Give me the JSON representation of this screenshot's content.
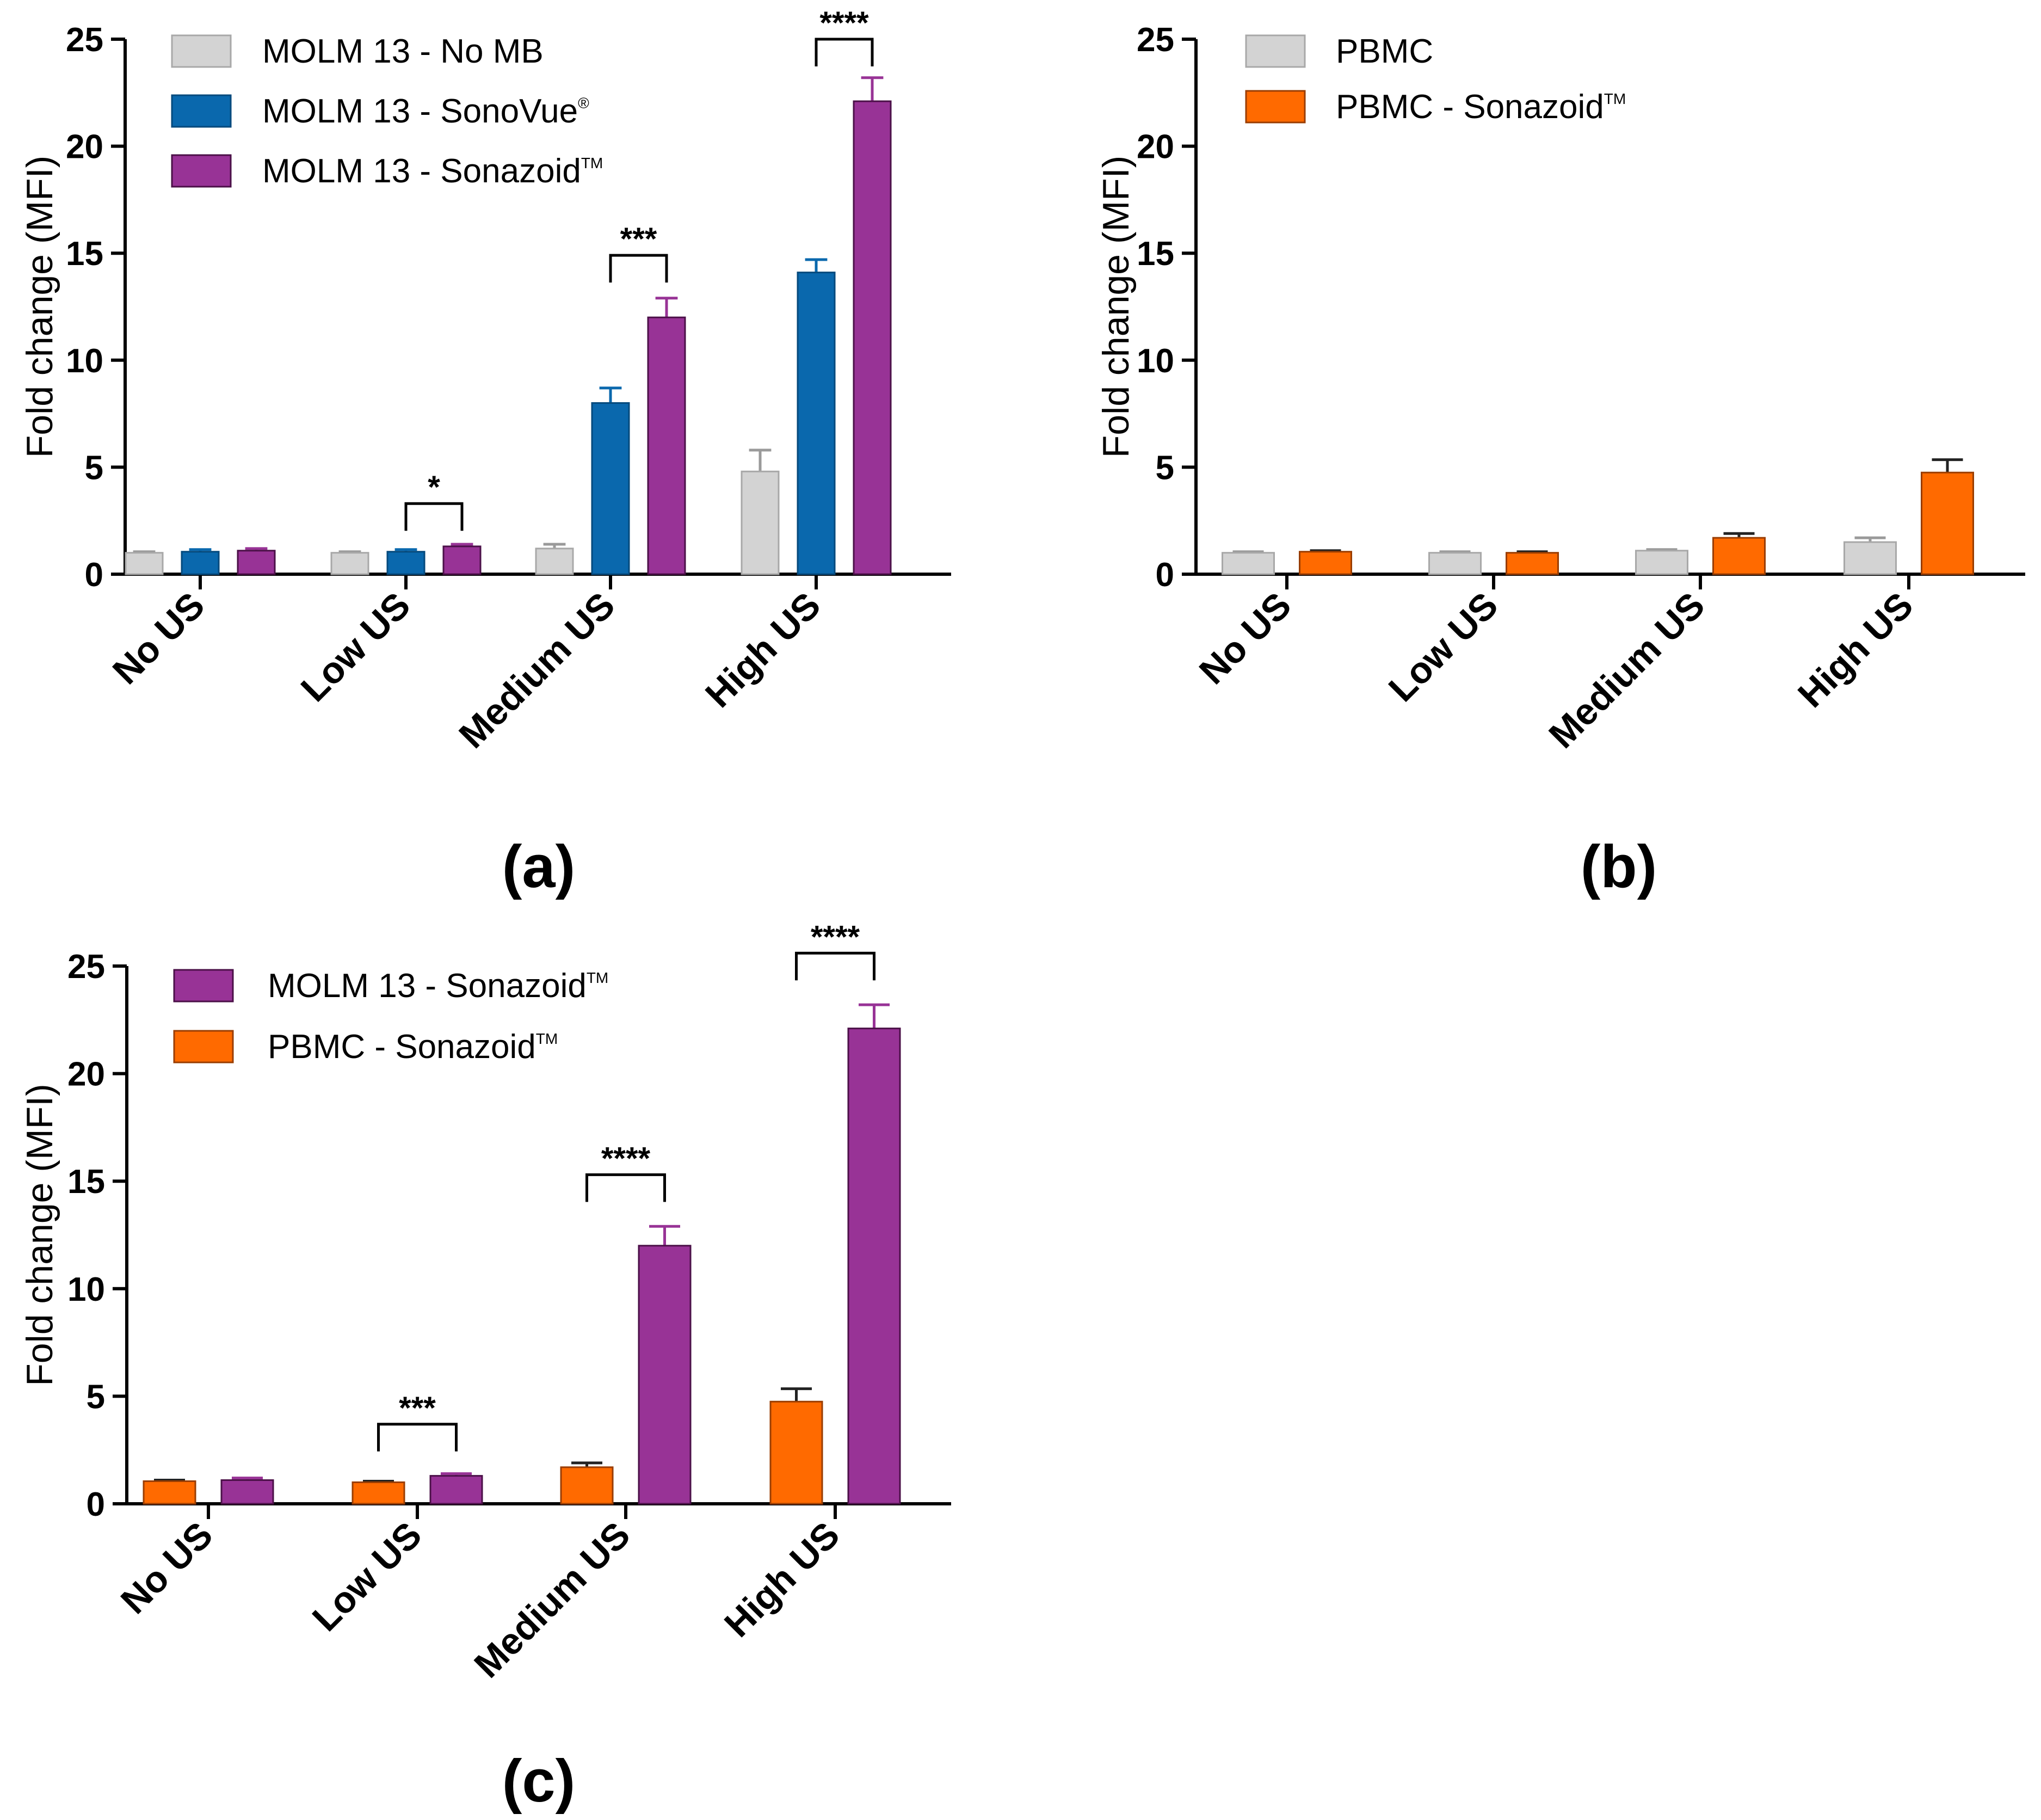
{
  "colors": {
    "gray": "#d3d3d3",
    "gray_edge": "#a8a8a8",
    "blue": "#0a68ad",
    "purple": "#983396",
    "orange": "#ff6a00"
  },
  "chart_data": [
    {
      "type": "bar",
      "panel_label": "(a)",
      "ylabel": "Fold change (MFI)",
      "ylim": [
        0,
        25
      ],
      "yticks": [
        0,
        5,
        10,
        15,
        20,
        25
      ],
      "categories": [
        "No US",
        "Low US",
        "Medium US",
        "High US"
      ],
      "series": [
        {
          "name": "MOLM 13 - No MB",
          "legend_main": "MOLM 13 - No MB",
          "legend_sup": "",
          "color_key": "gray",
          "values": [
            1.0,
            1.0,
            1.2,
            4.8
          ],
          "errors": [
            0.05,
            0.05,
            0.2,
            1.0
          ]
        },
        {
          "name": "MOLM 13 - SonoVue®",
          "legend_main": "MOLM 13 - SonoVue",
          "legend_sup": "®",
          "color_key": "blue",
          "values": [
            1.05,
            1.05,
            8.0,
            14.1
          ],
          "errors": [
            0.1,
            0.1,
            0.7,
            0.6
          ]
        },
        {
          "name": "MOLM 13 - Sonazoid™",
          "legend_main": "MOLM 13 - Sonazoid",
          "legend_sup": "TM",
          "color_key": "purple",
          "values": [
            1.1,
            1.3,
            12.0,
            22.1
          ],
          "errors": [
            0.1,
            0.1,
            0.9,
            1.1
          ]
        }
      ],
      "significance": [
        {
          "category": 1,
          "from_series": 1,
          "to_series": 2,
          "label": "*",
          "y": 3.3
        },
        {
          "category": 2,
          "from_series": 1,
          "to_series": 2,
          "label": "***",
          "y": 14.9
        },
        {
          "category": 3,
          "from_series": 1,
          "to_series": 2,
          "label": "****",
          "y": 25.0
        }
      ]
    },
    {
      "type": "bar",
      "panel_label": "(b)",
      "ylabel": "Fold change (MFI)",
      "ylim": [
        0,
        25
      ],
      "yticks": [
        0,
        5,
        10,
        15,
        20,
        25
      ],
      "categories": [
        "No US",
        "Low US",
        "Medium US",
        "High US"
      ],
      "series": [
        {
          "name": "PBMC",
          "legend_main": "PBMC",
          "legend_sup": "",
          "color_key": "gray",
          "values": [
            1.0,
            1.0,
            1.1,
            1.5
          ],
          "errors": [
            0.05,
            0.05,
            0.05,
            0.2
          ]
        },
        {
          "name": "PBMC - Sonazoid™",
          "legend_main": "PBMC - Sonazoid",
          "legend_sup": "TM",
          "color_key": "orange",
          "values": [
            1.05,
            1.0,
            1.7,
            4.75
          ],
          "errors": [
            0.05,
            0.05,
            0.2,
            0.6
          ]
        }
      ],
      "significance": []
    },
    {
      "type": "bar",
      "panel_label": "(c)",
      "ylabel": "Fold change (MFI)",
      "ylim": [
        0,
        25
      ],
      "yticks": [
        0,
        5,
        10,
        15,
        20,
        25
      ],
      "categories": [
        "No US",
        "Low US",
        "Medium US",
        "High US"
      ],
      "series": [
        {
          "name": "PBMC - Sonazoid™",
          "legend_main": "PBMC - Sonazoid",
          "legend_sup": "TM",
          "color_key": "orange",
          "values": [
            1.05,
            1.0,
            1.7,
            4.75
          ],
          "errors": [
            0.05,
            0.05,
            0.2,
            0.6
          ]
        },
        {
          "name": "MOLM 13 - Sonazoid™",
          "legend_main": "MOLM 13 - Sonazoid",
          "legend_sup": "TM",
          "color_key": "purple",
          "values": [
            1.1,
            1.3,
            12.0,
            22.1
          ],
          "errors": [
            0.1,
            0.1,
            0.9,
            1.1
          ]
        }
      ],
      "legend_order": [
        1,
        0
      ],
      "significance": [
        {
          "category": 1,
          "from_series": 0,
          "to_series": 1,
          "label": "***",
          "y": 3.7
        },
        {
          "category": 2,
          "from_series": 0,
          "to_series": 1,
          "label": "****",
          "y": 15.3
        },
        {
          "category": 3,
          "from_series": 0,
          "to_series": 1,
          "label": "****",
          "y": 25.6
        }
      ]
    }
  ]
}
